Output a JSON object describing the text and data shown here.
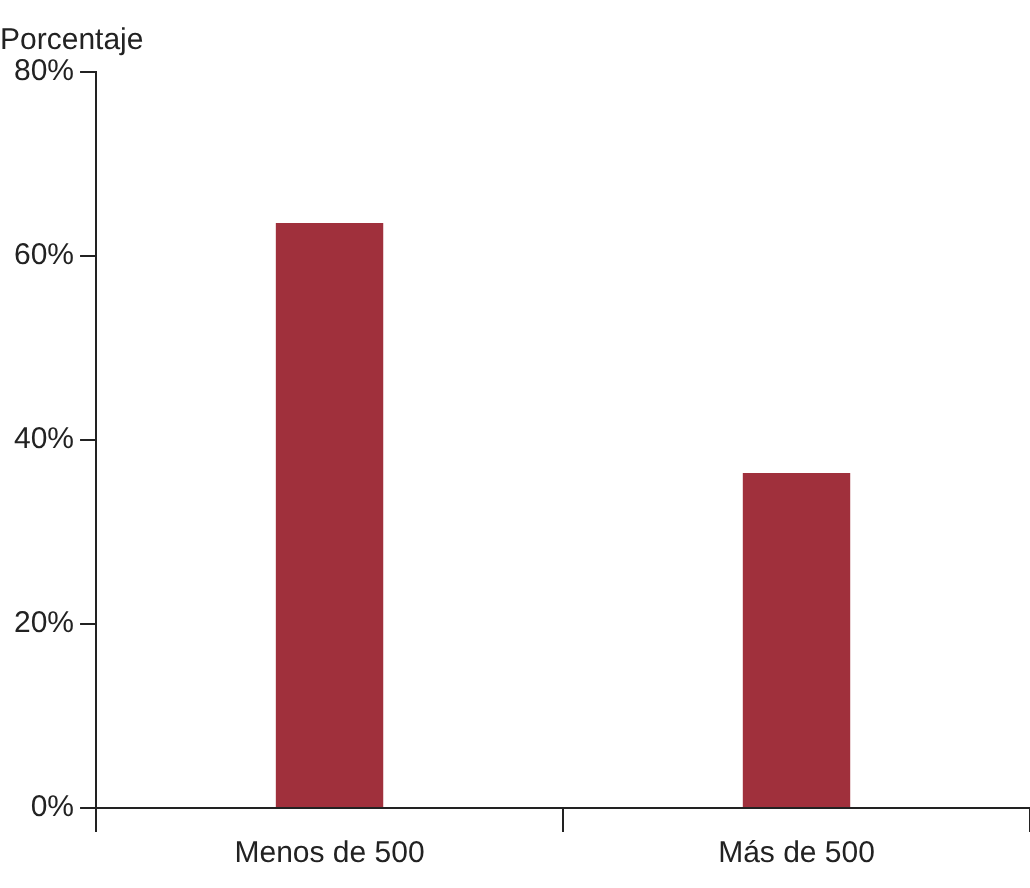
{
  "chart_data": {
    "type": "bar",
    "ylabel": "Porcentaje",
    "categories": [
      "Menos de 500",
      "Más de 500"
    ],
    "values": [
      63.6,
      36.4
    ],
    "color": "#a0303c",
    "ylim": [
      0,
      80
    ],
    "yticks": [
      {
        "value": 0,
        "label": "0%"
      },
      {
        "value": 20,
        "label": "20%"
      },
      {
        "value": 40,
        "label": "40%"
      },
      {
        "value": 60,
        "label": "60%"
      },
      {
        "value": 80,
        "label": "80%"
      }
    ],
    "grid": false,
    "legend": false
  }
}
